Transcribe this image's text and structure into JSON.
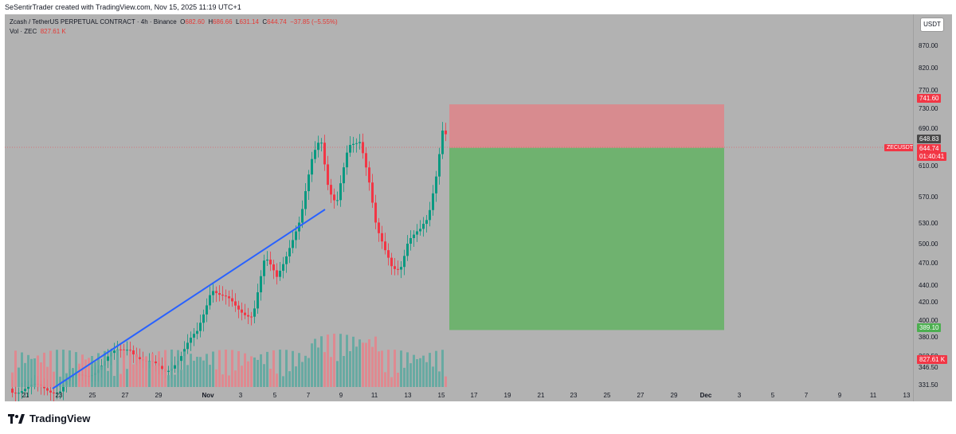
{
  "header": {
    "caption": "SeSentirTrader created with TradingView.com, Nov 15, 2025 11:19 UTC+1"
  },
  "legend": {
    "symbol_line": "Zcash / TetherUS PERPETUAL CONTRACT · 4h · Binance",
    "open_label": "O",
    "open": "682.60",
    "high_label": "H",
    "high": "686.66",
    "low_label": "L",
    "low": "631.14",
    "close_label": "C",
    "close": "644.74",
    "change": "−37.85 (−5.55%)",
    "vol_label": "Vol · ZEC",
    "vol_value": "827.61 K"
  },
  "price_axis": {
    "currency_button": "USDT",
    "ticks": [
      "870.00",
      "820.00",
      "770.00",
      "730.00",
      "690.00",
      "650.00",
      "610.00",
      "570.00",
      "530.00",
      "500.00",
      "470.00",
      "440.00",
      "420.00",
      "400.00",
      "380.00",
      "362.50",
      "346.50",
      "331.50"
    ],
    "stop_badge": "741.60",
    "entry_badge": "648.83",
    "last_price_badge": "644.74",
    "countdown": "01:40:41",
    "target_badge": "389.10",
    "volume_badge": "827.61 K",
    "symbol_tag": "ZECUSDT.P"
  },
  "time_axis": {
    "labels": [
      "21",
      "23",
      "25",
      "27",
      "29",
      "Nov",
      "3",
      "5",
      "7",
      "9",
      "11",
      "13",
      "15",
      "17",
      "19",
      "21",
      "23",
      "25",
      "27",
      "29",
      "Dec",
      "3",
      "5",
      "7",
      "9",
      "11",
      "13"
    ]
  },
  "position_tool": {
    "stop": 741.6,
    "entry": 648.83,
    "target": 389.1,
    "stop_color": "#d88b8f",
    "target_color": "#6fb26f"
  },
  "colors": {
    "up": "#089981",
    "down": "#f23645",
    "trendline": "#2962ff",
    "background": "#b2b2b2"
  },
  "footer": {
    "brand": "TradingView"
  }
}
